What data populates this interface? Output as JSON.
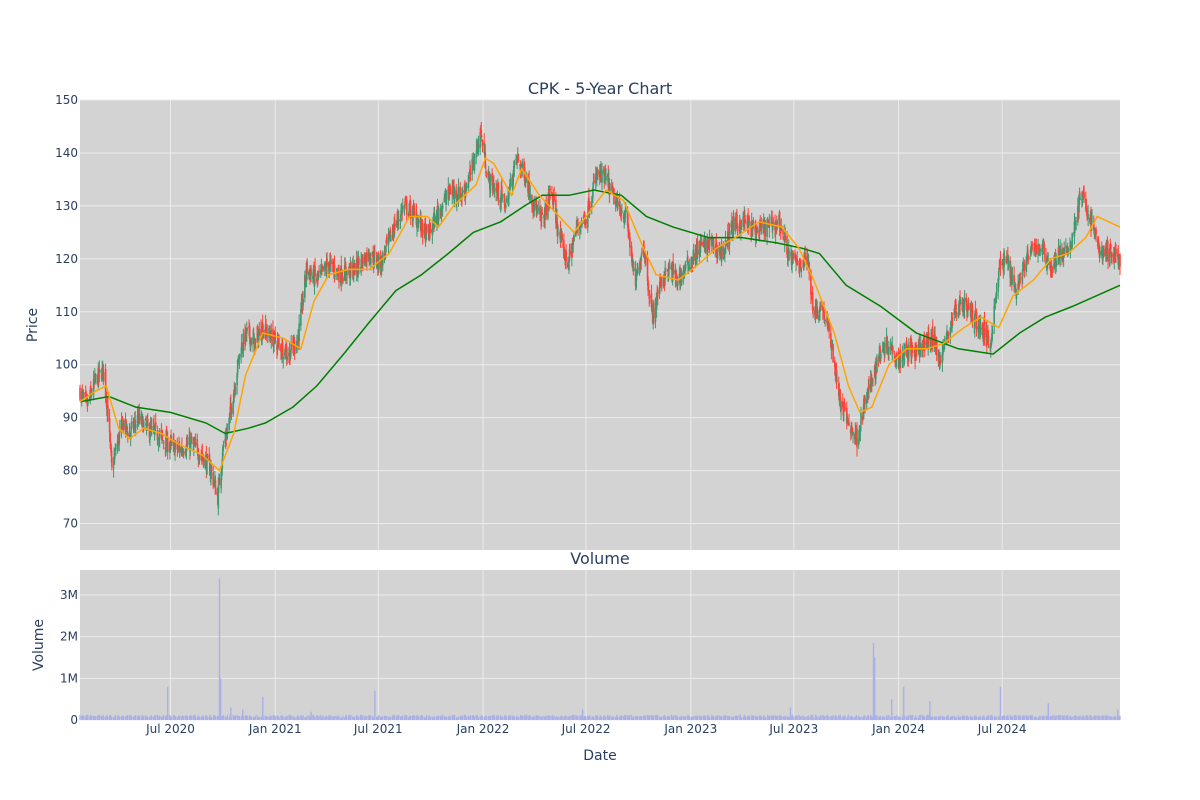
{
  "chart_data": [
    {
      "type": "candlestick",
      "title": "CPK - 5-Year Chart",
      "ylabel": "Price",
      "ylim": [
        65,
        150
      ],
      "y_ticks": [
        70,
        80,
        90,
        100,
        110,
        120,
        130,
        140,
        150
      ],
      "x_range": [
        "2020-01-24",
        "2025-01-24"
      ],
      "grid": true,
      "colors": {
        "up": "#3d9970",
        "down": "#ff4136",
        "ma_short": "#ffa500",
        "ma_long": "#008000",
        "plot_bg": "#d3d3d3",
        "grid": "#ebebeb"
      },
      "close_path": [
        [
          "2020-01-24",
          95
        ],
        [
          "2020-02-05",
          92
        ],
        [
          "2020-02-20",
          97
        ],
        [
          "2020-03-05",
          99
        ],
        [
          "2020-03-12",
          92
        ],
        [
          "2020-03-20",
          80
        ],
        [
          "2020-03-27",
          84
        ],
        [
          "2020-04-08",
          89
        ],
        [
          "2020-04-20",
          87
        ],
        [
          "2020-05-05",
          90
        ],
        [
          "2020-05-20",
          88
        ],
        [
          "2020-06-05",
          87
        ],
        [
          "2020-06-25",
          85
        ],
        [
          "2020-07-15",
          84
        ],
        [
          "2020-08-05",
          85
        ],
        [
          "2020-08-25",
          83
        ],
        [
          "2020-09-10",
          80
        ],
        [
          "2020-09-22",
          75
        ],
        [
          "2020-10-01",
          84
        ],
        [
          "2020-10-10",
          88
        ],
        [
          "2020-10-20",
          95
        ],
        [
          "2020-11-01",
          103
        ],
        [
          "2020-11-12",
          106
        ],
        [
          "2020-11-25",
          104
        ],
        [
          "2020-12-10",
          107
        ],
        [
          "2021-01-05",
          104
        ],
        [
          "2021-01-25",
          102
        ],
        [
          "2021-02-10",
          105
        ],
        [
          "2021-02-25",
          118
        ],
        [
          "2021-03-15",
          116
        ],
        [
          "2021-04-05",
          119
        ],
        [
          "2021-04-25",
          117
        ],
        [
          "2021-05-20",
          118
        ],
        [
          "2021-06-15",
          121
        ],
        [
          "2021-07-05",
          119
        ],
        [
          "2021-07-25",
          125
        ],
        [
          "2021-08-15",
          130
        ],
        [
          "2021-09-05",
          128
        ],
        [
          "2021-09-25",
          124
        ],
        [
          "2021-10-15",
          129
        ],
        [
          "2021-11-05",
          133
        ],
        [
          "2021-11-25",
          132
        ],
        [
          "2021-12-10",
          136
        ],
        [
          "2021-12-28",
          144
        ],
        [
          "2022-01-10",
          135
        ],
        [
          "2022-01-25",
          133
        ],
        [
          "2022-02-10",
          130
        ],
        [
          "2022-03-01",
          139
        ],
        [
          "2022-03-15",
          136
        ],
        [
          "2022-04-01",
          130
        ],
        [
          "2022-04-15",
          127
        ],
        [
          "2022-05-01",
          133
        ],
        [
          "2022-05-15",
          124
        ],
        [
          "2022-05-30",
          119
        ],
        [
          "2022-06-15",
          126
        ],
        [
          "2022-07-01",
          128
        ],
        [
          "2022-07-20",
          136
        ],
        [
          "2022-08-05",
          135
        ],
        [
          "2022-08-25",
          130
        ],
        [
          "2022-09-10",
          128
        ],
        [
          "2022-09-25",
          115
        ],
        [
          "2022-10-10",
          123
        ],
        [
          "2022-10-25",
          109
        ],
        [
          "2022-11-10",
          116
        ],
        [
          "2022-11-25",
          118
        ],
        [
          "2022-12-10",
          116
        ],
        [
          "2022-12-28",
          119
        ],
        [
          "2023-01-15",
          122
        ],
        [
          "2023-02-05",
          123
        ],
        [
          "2023-02-25",
          121
        ],
        [
          "2023-03-15",
          126
        ],
        [
          "2023-04-05",
          127
        ],
        [
          "2023-04-25",
          125
        ],
        [
          "2023-05-15",
          126
        ],
        [
          "2023-06-05",
          127
        ],
        [
          "2023-06-25",
          120
        ],
        [
          "2023-07-10",
          119
        ],
        [
          "2023-07-25",
          120
        ],
        [
          "2023-08-05",
          110
        ],
        [
          "2023-08-20",
          111
        ],
        [
          "2023-09-05",
          104
        ],
        [
          "2023-09-20",
          93
        ],
        [
          "2023-10-05",
          89
        ],
        [
          "2023-10-20",
          86
        ],
        [
          "2023-11-01",
          92
        ],
        [
          "2023-11-15",
          97
        ],
        [
          "2023-12-01",
          103
        ],
        [
          "2023-12-15",
          104
        ],
        [
          "2024-01-01",
          101
        ],
        [
          "2024-01-15",
          103
        ],
        [
          "2024-02-01",
          102
        ],
        [
          "2024-02-15",
          104
        ],
        [
          "2024-03-01",
          105
        ],
        [
          "2024-03-15",
          101
        ],
        [
          "2024-04-05",
          109
        ],
        [
          "2024-04-20",
          112
        ],
        [
          "2024-05-05",
          110
        ],
        [
          "2024-05-25",
          107
        ],
        [
          "2024-06-10",
          104
        ],
        [
          "2024-06-25",
          118
        ],
        [
          "2024-07-10",
          120
        ],
        [
          "2024-07-25",
          114
        ],
        [
          "2024-08-10",
          119
        ],
        [
          "2024-08-25",
          122
        ],
        [
          "2024-09-10",
          122
        ],
        [
          "2024-09-25",
          118
        ],
        [
          "2024-10-10",
          121
        ],
        [
          "2024-10-25",
          121
        ],
        [
          "2024-11-05",
          126
        ],
        [
          "2024-11-15",
          132
        ],
        [
          "2024-11-25",
          130
        ],
        [
          "2024-12-10",
          125
        ],
        [
          "2024-12-20",
          121
        ],
        [
          "2025-01-10",
          121
        ],
        [
          "2025-01-24",
          120
        ]
      ],
      "ma_short_path": [
        [
          "2020-01-24",
          93
        ],
        [
          "2020-02-20",
          95
        ],
        [
          "2020-03-10",
          96
        ],
        [
          "2020-04-01",
          88
        ],
        [
          "2020-04-20",
          86
        ],
        [
          "2020-05-15",
          88
        ],
        [
          "2020-06-15",
          87
        ],
        [
          "2020-07-15",
          85
        ],
        [
          "2020-08-25",
          83
        ],
        [
          "2020-09-25",
          80
        ],
        [
          "2020-10-20",
          87
        ],
        [
          "2020-11-10",
          98
        ],
        [
          "2020-12-10",
          106
        ],
        [
          "2021-01-15",
          105
        ],
        [
          "2021-02-15",
          103
        ],
        [
          "2021-03-10",
          112
        ],
        [
          "2021-04-05",
          117
        ],
        [
          "2021-05-10",
          118
        ],
        [
          "2021-06-15",
          118
        ],
        [
          "2021-07-20",
          121
        ],
        [
          "2021-08-25",
          128
        ],
        [
          "2021-09-25",
          128
        ],
        [
          "2021-10-15",
          126
        ],
        [
          "2021-11-10",
          130
        ],
        [
          "2021-12-20",
          134
        ],
        [
          "2022-01-05",
          139
        ],
        [
          "2022-01-20",
          138
        ],
        [
          "2022-02-20",
          132
        ],
        [
          "2022-03-10",
          137
        ],
        [
          "2022-04-10",
          132
        ],
        [
          "2022-05-15",
          128
        ],
        [
          "2022-06-10",
          125
        ],
        [
          "2022-07-15",
          130
        ],
        [
          "2022-08-05",
          133
        ],
        [
          "2022-09-05",
          131
        ],
        [
          "2022-10-10",
          122
        ],
        [
          "2022-11-01",
          117
        ],
        [
          "2022-12-10",
          116
        ],
        [
          "2023-01-15",
          119
        ],
        [
          "2023-02-15",
          122
        ],
        [
          "2023-03-20",
          124
        ],
        [
          "2023-05-01",
          127
        ],
        [
          "2023-06-10",
          126
        ],
        [
          "2023-07-10",
          122
        ],
        [
          "2023-08-05",
          116
        ],
        [
          "2023-09-10",
          106
        ],
        [
          "2023-10-05",
          96
        ],
        [
          "2023-10-25",
          91
        ],
        [
          "2023-11-15",
          92
        ],
        [
          "2023-12-15",
          100
        ],
        [
          "2024-01-15",
          103
        ],
        [
          "2024-02-20",
          103
        ],
        [
          "2024-03-20",
          104
        ],
        [
          "2024-04-25",
          107
        ],
        [
          "2024-05-25",
          109
        ],
        [
          "2024-06-25",
          107
        ],
        [
          "2024-07-20",
          113
        ],
        [
          "2024-08-25",
          116
        ],
        [
          "2024-09-25",
          120
        ],
        [
          "2024-10-25",
          121
        ],
        [
          "2024-11-25",
          124
        ],
        [
          "2024-12-15",
          128
        ],
        [
          "2025-01-24",
          126
        ]
      ],
      "ma_long_path": [
        [
          "2020-01-24",
          93
        ],
        [
          "2020-03-15",
          94
        ],
        [
          "2020-05-01",
          92
        ],
        [
          "2020-07-01",
          91
        ],
        [
          "2020-09-01",
          89
        ],
        [
          "2020-10-05",
          87
        ],
        [
          "2020-11-15",
          88
        ],
        [
          "2020-12-15",
          89
        ],
        [
          "2021-02-01",
          92
        ],
        [
          "2021-03-15",
          96
        ],
        [
          "2021-05-01",
          102
        ],
        [
          "2021-06-15",
          108
        ],
        [
          "2021-08-01",
          114
        ],
        [
          "2021-09-15",
          117
        ],
        [
          "2021-11-01",
          121
        ],
        [
          "2021-12-15",
          125
        ],
        [
          "2022-02-01",
          127
        ],
        [
          "2022-03-15",
          130
        ],
        [
          "2022-04-15",
          132
        ],
        [
          "2022-06-01",
          132
        ],
        [
          "2022-07-15",
          133
        ],
        [
          "2022-09-01",
          132
        ],
        [
          "2022-10-15",
          128
        ],
        [
          "2022-12-01",
          126
        ],
        [
          "2023-02-01",
          124
        ],
        [
          "2023-04-01",
          124
        ],
        [
          "2023-06-01",
          123
        ],
        [
          "2023-07-15",
          122
        ],
        [
          "2023-08-15",
          121
        ],
        [
          "2023-10-01",
          115
        ],
        [
          "2023-12-01",
          111
        ],
        [
          "2024-02-01",
          106
        ],
        [
          "2024-04-15",
          103
        ],
        [
          "2024-06-15",
          102
        ],
        [
          "2024-08-01",
          106
        ],
        [
          "2024-09-15",
          109
        ],
        [
          "2024-11-01",
          111
        ],
        [
          "2025-01-24",
          115
        ]
      ]
    },
    {
      "type": "bar",
      "title": "Volume",
      "xlabel": "Date",
      "ylabel": "Volume",
      "ylim": [
        0,
        3600000
      ],
      "y_ticks": [
        {
          "v": 0,
          "label": "0"
        },
        {
          "v": 1000000,
          "label": "1M"
        },
        {
          "v": 2000000,
          "label": "2M"
        },
        {
          "v": 3000000,
          "label": "3M"
        }
      ],
      "x_ticks": [
        {
          "date": "2020-07-01",
          "label": "Jul 2020"
        },
        {
          "date": "2021-01-01",
          "label": "Jan 2021"
        },
        {
          "date": "2021-07-01",
          "label": "Jul 2021"
        },
        {
          "date": "2022-01-01",
          "label": "Jan 2022"
        },
        {
          "date": "2022-07-01",
          "label": "Jul 2022"
        },
        {
          "date": "2023-01-01",
          "label": "Jan 2023"
        },
        {
          "date": "2023-07-01",
          "label": "Jul 2023"
        },
        {
          "date": "2024-01-01",
          "label": "Jan 2024"
        },
        {
          "date": "2024-07-01",
          "label": "Jul 2024"
        }
      ],
      "color": "#aab0e8",
      "base_volume": 90000,
      "spikes": [
        [
          "2020-06-26",
          800000
        ],
        [
          "2020-09-25",
          3400000
        ],
        [
          "2020-09-27",
          1000000
        ],
        [
          "2020-10-15",
          300000
        ],
        [
          "2020-11-05",
          250000
        ],
        [
          "2020-12-10",
          550000
        ],
        [
          "2021-06-25",
          700000
        ],
        [
          "2021-03-05",
          200000
        ],
        [
          "2022-06-25",
          250000
        ],
        [
          "2023-06-25",
          300000
        ],
        [
          "2023-11-18",
          1850000
        ],
        [
          "2023-11-20",
          1500000
        ],
        [
          "2023-12-20",
          500000
        ],
        [
          "2024-01-10",
          800000
        ],
        [
          "2024-02-25",
          450000
        ],
        [
          "2024-06-28",
          800000
        ],
        [
          "2024-09-20",
          400000
        ],
        [
          "2025-01-20",
          250000
        ]
      ]
    }
  ]
}
